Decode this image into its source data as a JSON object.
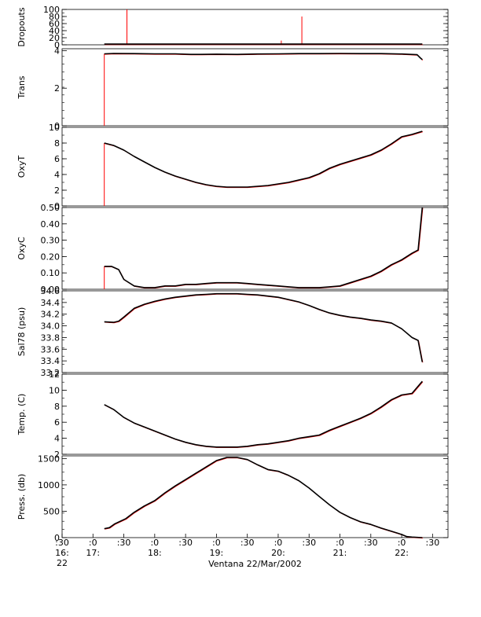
{
  "chart_data": {
    "type": "line",
    "xlabel": "Ventana 22/Mar/2002",
    "x_ticks": [
      {
        "min": 990,
        "l1": ":30",
        "l2": "16:",
        "l3": "22"
      },
      {
        "min": 1020,
        "l1": ":0",
        "l2": "17:",
        "l3": ""
      },
      {
        "min": 1050,
        "l1": ":30",
        "l2": "",
        "l3": ""
      },
      {
        "min": 1080,
        "l1": ":0",
        "l2": "18:",
        "l3": ""
      },
      {
        "min": 1110,
        "l1": ":30",
        "l2": "",
        "l3": ""
      },
      {
        "min": 1140,
        "l1": ":0",
        "l2": "19:",
        "l3": ""
      },
      {
        "min": 1170,
        "l1": ":30",
        "l2": "",
        "l3": ""
      },
      {
        "min": 1200,
        "l1": ":0",
        "l2": "20:",
        "l3": ""
      },
      {
        "min": 1230,
        "l1": ":30",
        "l2": "",
        "l3": ""
      },
      {
        "min": 1260,
        "l1": ":0",
        "l2": "21:",
        "l3": ""
      },
      {
        "min": 1290,
        "l1": ":30",
        "l2": "",
        "l3": ""
      },
      {
        "min": 1320,
        "l1": ":0",
        "l2": "22:",
        "l3": ""
      },
      {
        "min": 1350,
        "l1": ":30",
        "l2": "",
        "l3": ""
      }
    ],
    "xlim_minutes": [
      990,
      1365
    ],
    "colors": {
      "trace": "#000000",
      "spike": "#ff0000"
    },
    "panels": [
      {
        "ylabel": "Dropouts",
        "ylim": [
          0,
          100
        ],
        "ticks": [
          {
            "v": 0,
            "t": "0"
          },
          {
            "v": 20,
            "t": "20"
          },
          {
            "v": 40,
            "t": "40"
          },
          {
            "v": 60,
            "t": "60"
          },
          {
            "v": 80,
            "t": "80"
          },
          {
            "v": 100,
            "t": "100"
          }
        ],
        "x": [
          1031,
          1340
        ],
        "y": [
          2,
          2
        ],
        "spikes": [
          {
            "x": 1053,
            "from": 2,
            "to": 100
          },
          {
            "x": 1203,
            "from": 2,
            "to": 12
          },
          {
            "x": 1223,
            "from": 2,
            "to": 80
          }
        ]
      },
      {
        "ylabel": "Trans",
        "ylim": [
          0,
          4.1
        ],
        "ticks": [
          {
            "v": 0,
            "t": "0"
          },
          {
            "v": 2,
            "t": "2"
          },
          {
            "v": 4,
            "t": "4"
          }
        ],
        "x": [
          1031,
          1040,
          1060,
          1080,
          1100,
          1115,
          1125,
          1140,
          1160,
          1180,
          1200,
          1220,
          1240,
          1260,
          1280,
          1300,
          1320,
          1335,
          1338,
          1340
        ],
        "y": [
          3.83,
          3.85,
          3.84,
          3.83,
          3.83,
          3.8,
          3.8,
          3.81,
          3.8,
          3.82,
          3.83,
          3.84,
          3.84,
          3.85,
          3.84,
          3.84,
          3.82,
          3.78,
          3.62,
          3.52
        ],
        "spikes": [
          {
            "x": 1031,
            "from": 3.83,
            "to": 0
          }
        ]
      },
      {
        "ylabel": "OxyT",
        "ylim": [
          0,
          10
        ],
        "ticks": [
          {
            "v": 0,
            "t": "0"
          },
          {
            "v": 2,
            "t": "2"
          },
          {
            "v": 4,
            "t": "4"
          },
          {
            "v": 6,
            "t": "6"
          },
          {
            "v": 8,
            "t": "8"
          },
          {
            "v": 10,
            "t": "10"
          }
        ],
        "x": [
          1031,
          1040,
          1050,
          1060,
          1070,
          1080,
          1090,
          1100,
          1110,
          1120,
          1130,
          1140,
          1150,
          1160,
          1170,
          1180,
          1190,
          1200,
          1210,
          1220,
          1230,
          1240,
          1250,
          1260,
          1270,
          1280,
          1290,
          1300,
          1310,
          1320,
          1330,
          1340
        ],
        "y": [
          8.0,
          7.7,
          7.1,
          6.3,
          5.6,
          4.9,
          4.3,
          3.8,
          3.4,
          3.0,
          2.7,
          2.5,
          2.4,
          2.4,
          2.4,
          2.5,
          2.6,
          2.8,
          3.0,
          3.3,
          3.6,
          4.1,
          4.8,
          5.3,
          5.7,
          6.1,
          6.5,
          7.1,
          7.9,
          8.8,
          9.1,
          9.5
        ],
        "spikes": [
          {
            "x": 1031,
            "from": 8.0,
            "to": 0
          }
        ]
      },
      {
        "ylabel": "OxyC",
        "ylim": [
          0,
          0.5
        ],
        "ticks": [
          {
            "v": 0,
            "t": "0.00"
          },
          {
            "v": 0.1,
            "t": "0.10"
          },
          {
            "v": 0.2,
            "t": "0.20"
          },
          {
            "v": 0.3,
            "t": "0.30"
          },
          {
            "v": 0.4,
            "t": "0.40"
          },
          {
            "v": 0.5,
            "t": "0.50"
          }
        ],
        "x": [
          1031,
          1038,
          1045,
          1050,
          1060,
          1070,
          1080,
          1090,
          1100,
          1110,
          1120,
          1130,
          1140,
          1150,
          1160,
          1170,
          1180,
          1190,
          1200,
          1210,
          1220,
          1230,
          1240,
          1250,
          1260,
          1270,
          1280,
          1290,
          1300,
          1310,
          1320,
          1330,
          1336,
          1340
        ],
        "y": [
          0.14,
          0.14,
          0.12,
          0.06,
          0.02,
          0.01,
          0.01,
          0.02,
          0.02,
          0.03,
          0.03,
          0.035,
          0.04,
          0.04,
          0.04,
          0.035,
          0.03,
          0.025,
          0.02,
          0.015,
          0.01,
          0.01,
          0.01,
          0.015,
          0.02,
          0.04,
          0.06,
          0.08,
          0.11,
          0.15,
          0.18,
          0.22,
          0.24,
          0.5
        ],
        "spikes": [
          {
            "x": 1031,
            "from": 0.14,
            "to": 0
          }
        ]
      },
      {
        "ylabel": "Sal78 (psu)",
        "ylim": [
          33.2,
          34.6
        ],
        "ticks": [
          {
            "v": 33.2,
            "t": "33.2"
          },
          {
            "v": 33.4,
            "t": "33.4"
          },
          {
            "v": 33.6,
            "t": "33.6"
          },
          {
            "v": 33.8,
            "t": "33.8"
          },
          {
            "v": 34.0,
            "t": "34.0"
          },
          {
            "v": 34.2,
            "t": "34.2"
          },
          {
            "v": 34.4,
            "t": "34.4"
          },
          {
            "v": 34.6,
            "t": "34.6"
          }
        ],
        "x": [
          1031,
          1040,
          1045,
          1050,
          1060,
          1070,
          1080,
          1090,
          1100,
          1110,
          1120,
          1130,
          1140,
          1150,
          1160,
          1170,
          1180,
          1190,
          1200,
          1210,
          1220,
          1230,
          1240,
          1250,
          1260,
          1270,
          1280,
          1290,
          1300,
          1310,
          1320,
          1330,
          1336,
          1340
        ],
        "y": [
          34.07,
          34.06,
          34.08,
          34.15,
          34.3,
          34.37,
          34.42,
          34.46,
          34.49,
          34.51,
          34.53,
          34.54,
          34.55,
          34.55,
          34.55,
          34.54,
          34.53,
          34.51,
          34.49,
          34.45,
          34.41,
          34.35,
          34.28,
          34.22,
          34.18,
          34.15,
          34.13,
          34.1,
          34.08,
          34.05,
          33.95,
          33.8,
          33.75,
          33.38
        ],
        "spikes": []
      },
      {
        "ylabel": "Temp. (C)",
        "ylim": [
          2,
          12
        ],
        "ticks": [
          {
            "v": 2,
            "t": "2"
          },
          {
            "v": 4,
            "t": "4"
          },
          {
            "v": 6,
            "t": "6"
          },
          {
            "v": 8,
            "t": "8"
          },
          {
            "v": 10,
            "t": "10"
          },
          {
            "v": 12,
            "t": "12"
          }
        ],
        "x": [
          1031,
          1040,
          1050,
          1060,
          1070,
          1080,
          1090,
          1100,
          1110,
          1120,
          1130,
          1140,
          1150,
          1160,
          1170,
          1180,
          1190,
          1200,
          1210,
          1220,
          1230,
          1240,
          1250,
          1260,
          1270,
          1280,
          1290,
          1300,
          1310,
          1320,
          1330,
          1340
        ],
        "y": [
          8.2,
          7.6,
          6.6,
          5.9,
          5.4,
          4.9,
          4.4,
          3.9,
          3.5,
          3.2,
          3.0,
          2.9,
          2.9,
          2.9,
          3.0,
          3.2,
          3.3,
          3.5,
          3.7,
          4.0,
          4.2,
          4.4,
          5.0,
          5.5,
          6.0,
          6.5,
          7.1,
          7.9,
          8.8,
          9.4,
          9.6,
          11.1
        ],
        "spikes": []
      },
      {
        "ylabel": "Press. (db)",
        "ylim": [
          0,
          1550
        ],
        "ticks": [
          {
            "v": 0,
            "t": "0"
          },
          {
            "v": 500,
            "t": "500"
          },
          {
            "v": 1000,
            "t": "1000"
          },
          {
            "v": 1500,
            "t": "1500"
          }
        ],
        "x": [
          1031,
          1036,
          1041,
          1052,
          1060,
          1070,
          1080,
          1090,
          1100,
          1110,
          1120,
          1130,
          1140,
          1150,
          1160,
          1170,
          1180,
          1190,
          1200,
          1210,
          1220,
          1230,
          1240,
          1250,
          1260,
          1270,
          1280,
          1290,
          1300,
          1310,
          1320,
          1325,
          1330,
          1340
        ],
        "y": [
          170,
          190,
          260,
          360,
          480,
          600,
          700,
          850,
          980,
          1100,
          1220,
          1340,
          1460,
          1520,
          1520,
          1480,
          1380,
          1290,
          1260,
          1180,
          1080,
          940,
          780,
          620,
          480,
          380,
          300,
          250,
          180,
          120,
          60,
          20,
          10,
          0
        ],
        "spikes": []
      }
    ]
  }
}
